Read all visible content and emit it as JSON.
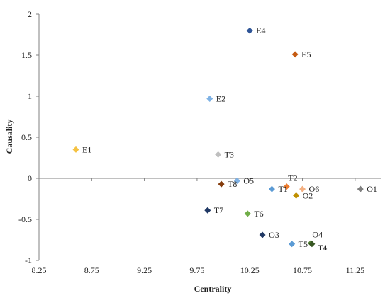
{
  "chart_data": {
    "type": "scatter",
    "xlabel": "Centrality",
    "ylabel": "Causality",
    "xlim": [
      8.25,
      11.5
    ],
    "ylim": [
      -1,
      2
    ],
    "x_ticks": [
      "8.25",
      "8.75",
      "9.25",
      "9.75",
      "10.25",
      "10.75",
      "11.25"
    ],
    "x_tick_values": [
      8.25,
      8.75,
      9.25,
      9.75,
      10.25,
      10.75,
      11.25
    ],
    "y_ticks": [
      "2",
      "1.5",
      "1",
      "0.5",
      "0",
      "-0.5",
      "-1"
    ],
    "y_tick_values": [
      2,
      1.5,
      1,
      0.5,
      0,
      -0.5,
      -1
    ],
    "grid": false,
    "points": [
      {
        "label": "E1",
        "x": 8.6,
        "y": 0.35,
        "color": "#f5c242",
        "label_side": "right"
      },
      {
        "label": "E2",
        "x": 9.87,
        "y": 0.97,
        "color": "#7fb2e5",
        "label_side": "right"
      },
      {
        "label": "E4",
        "x": 10.25,
        "y": 1.8,
        "color": "#2f5597",
        "label_side": "right"
      },
      {
        "label": "E5",
        "x": 10.68,
        "y": 1.51,
        "color": "#c55a11",
        "label_side": "right"
      },
      {
        "label": "T3",
        "x": 9.95,
        "y": 0.29,
        "color": "#bfbfbf",
        "label_side": "right"
      },
      {
        "label": "O5",
        "x": 10.13,
        "y": -0.03,
        "color": "#7fb2e5",
        "label_side": "right"
      },
      {
        "label": "T8",
        "x": 9.98,
        "y": -0.07,
        "color": "#843c0c",
        "label_side": "right"
      },
      {
        "label": "T1",
        "x": 10.46,
        "y": -0.13,
        "color": "#5b9bd5",
        "label_side": "right"
      },
      {
        "label": "T2",
        "x": 10.6,
        "y": -0.1,
        "color": "#ed7d31",
        "label_side": "above-right"
      },
      {
        "label": "O6",
        "x": 10.75,
        "y": -0.13,
        "color": "#f4b183",
        "label_side": "right"
      },
      {
        "label": "O2",
        "x": 10.69,
        "y": -0.21,
        "color": "#bf8f00",
        "label_side": "right"
      },
      {
        "label": "O1",
        "x": 11.3,
        "y": -0.13,
        "color": "#808080",
        "label_side": "right"
      },
      {
        "label": "T7",
        "x": 9.85,
        "y": -0.39,
        "color": "#1f3864",
        "label_side": "right"
      },
      {
        "label": "T6",
        "x": 10.23,
        "y": -0.43,
        "color": "#70ad47",
        "label_side": "right"
      },
      {
        "label": "O3",
        "x": 10.37,
        "y": -0.69,
        "color": "#203864",
        "label_side": "right"
      },
      {
        "label": "O4",
        "x": 10.83,
        "y": -0.79,
        "color": "#548235",
        "label_side": "above-right"
      },
      {
        "label": "T4",
        "x": 10.84,
        "y": -0.8,
        "color": "#375623",
        "label_side": "below-right"
      },
      {
        "label": "T5",
        "x": 10.65,
        "y": -0.8,
        "color": "#5b9bd5",
        "label_side": "right"
      }
    ]
  }
}
